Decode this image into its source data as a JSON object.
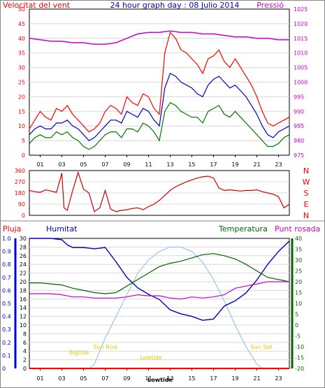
{
  "chart_data": [
    {
      "type": "line",
      "panel": "wind-pressure",
      "title": "24 hour graph day : 08 Julio 2014",
      "left_axis_title": "Velocitat del vent",
      "right_axis_title": "Pressió",
      "y_left_ticks": [
        "50",
        "45",
        "40",
        "35",
        "30",
        "25",
        "20",
        "15",
        "10",
        "5",
        "0"
      ],
      "y_right_ticks": [
        "1025",
        "1020",
        "1015",
        "1010",
        "1005",
        "1000",
        "995",
        "990",
        "985",
        "980",
        "975"
      ],
      "ylim_left": [
        0,
        50
      ],
      "ylim_right": [
        975,
        1025
      ],
      "x_ticks": [
        "01",
        "03",
        "05",
        "07",
        "09",
        "11",
        "13",
        "15",
        "17",
        "19",
        "21",
        "23"
      ],
      "xlim": [
        0,
        24
      ],
      "series": [
        {
          "axis": "left",
          "color": "#ff0000",
          "x": [
            0,
            0.5,
            1,
            1.5,
            2,
            2.5,
            3,
            3.5,
            4,
            4.5,
            5,
            5.5,
            6,
            6.5,
            7,
            7.5,
            8,
            8.5,
            9,
            9.5,
            10,
            10.5,
            11,
            11.5,
            12,
            12.5,
            13,
            13.5,
            14,
            14.5,
            15,
            15.5,
            16,
            16.5,
            17,
            17.5,
            18,
            18.5,
            19,
            19.5,
            20,
            20.5,
            21,
            21.5,
            22,
            22.5,
            23,
            23.5,
            24
          ],
          "y": [
            9,
            12,
            15,
            13,
            12,
            16,
            15,
            17,
            14,
            12,
            10,
            8,
            9,
            11,
            15,
            17,
            16,
            14,
            20,
            18,
            17,
            21,
            20,
            16,
            14,
            35,
            42,
            40,
            36,
            35,
            33,
            31,
            28,
            33,
            34,
            36,
            32,
            30,
            33,
            30,
            27,
            24,
            20,
            15,
            11,
            10,
            11,
            12,
            13
          ]
        },
        {
          "axis": "left",
          "color": "#0000cc",
          "x": [
            0,
            0.5,
            1,
            1.5,
            2,
            2.5,
            3,
            3.5,
            4,
            4.5,
            5,
            5.5,
            6,
            6.5,
            7,
            7.5,
            8,
            8.5,
            9,
            9.5,
            10,
            10.5,
            11,
            11.5,
            12,
            12.5,
            13,
            13.5,
            14,
            14.5,
            15,
            15.5,
            16,
            16.5,
            17,
            17.5,
            18,
            18.5,
            19,
            19.5,
            20,
            20.5,
            21,
            21.5,
            22,
            22.5,
            23,
            23.5,
            24
          ],
          "y": [
            7,
            9,
            10,
            9,
            9,
            11,
            11,
            12,
            10,
            9,
            7,
            5,
            6,
            8,
            10,
            12,
            12,
            11,
            15,
            14,
            13,
            16,
            15,
            12,
            10,
            23,
            28,
            27,
            25,
            24,
            23,
            21,
            20,
            24,
            26,
            27,
            25,
            23,
            24,
            22,
            20,
            17,
            14,
            10,
            7,
            6,
            8,
            9,
            10
          ]
        },
        {
          "axis": "left",
          "color": "#007700",
          "x": [
            0,
            0.5,
            1,
            1.5,
            2,
            2.5,
            3,
            3.5,
            4,
            4.5,
            5,
            5.5,
            6,
            6.5,
            7,
            7.5,
            8,
            8.5,
            9,
            9.5,
            10,
            10.5,
            11,
            11.5,
            12,
            12.5,
            13,
            13.5,
            14,
            14.5,
            15,
            15.5,
            16,
            16.5,
            17,
            17.5,
            18,
            18.5,
            19,
            19.5,
            20,
            20.5,
            21,
            21.5,
            22,
            22.5,
            23,
            23.5,
            24
          ],
          "y": [
            4,
            6,
            7,
            6,
            6,
            8,
            7,
            8,
            6,
            5,
            3,
            2,
            3,
            5,
            7,
            8,
            8,
            6,
            9,
            9,
            8,
            11,
            10,
            8,
            5,
            15,
            18,
            17,
            15,
            14,
            13,
            13,
            11,
            15,
            16,
            17,
            14,
            13,
            15,
            13,
            11,
            9,
            7,
            5,
            3,
            3,
            4,
            6,
            7
          ]
        },
        {
          "axis": "right",
          "color": "#cc00cc",
          "x": [
            0,
            1,
            2,
            3,
            4,
            5,
            6,
            7,
            8,
            9,
            10,
            11,
            12,
            13,
            14,
            15,
            16,
            17,
            18,
            19,
            20,
            21,
            22,
            23,
            24
          ],
          "y": [
            1015,
            1014.5,
            1014,
            1014,
            1013.5,
            1013.5,
            1013,
            1013,
            1013.5,
            1015,
            1016.5,
            1017,
            1017,
            1017.5,
            1017,
            1017,
            1016.5,
            1016.5,
            1016,
            1015.5,
            1015.5,
            1015,
            1015,
            1014.5,
            1014.5
          ]
        }
      ]
    },
    {
      "type": "scatter",
      "panel": "wind-direction",
      "y_left_ticks": [
        "360",
        "270",
        "180",
        "90",
        "0"
      ],
      "right_labels": [
        "N",
        "W",
        "S",
        "E",
        "N"
      ],
      "ylim": [
        0,
        360
      ],
      "xlim": [
        0,
        24
      ],
      "series": [
        {
          "color": "#cc0000",
          "x": [
            0,
            0.5,
            1,
            1.5,
            2,
            2.5,
            3,
            3.2,
            3.5,
            4,
            4.5,
            5,
            5.5,
            6,
            6.5,
            7,
            7.5,
            8,
            8.5,
            9,
            9.5,
            10,
            10.5,
            11,
            11.5,
            12,
            12.5,
            13,
            13.5,
            14,
            14.5,
            15,
            15.5,
            16,
            16.5,
            17,
            17.5,
            18,
            18.5,
            19,
            19.5,
            20,
            20.5,
            21,
            21.5,
            22,
            22.5,
            23,
            23.5,
            24
          ],
          "y": [
            200,
            190,
            185,
            205,
            195,
            185,
            340,
            60,
            40,
            200,
            345,
            210,
            180,
            30,
            60,
            200,
            50,
            30,
            40,
            45,
            55,
            60,
            45,
            70,
            90,
            120,
            160,
            200,
            230,
            250,
            270,
            285,
            300,
            310,
            315,
            300,
            220,
            200,
            205,
            200,
            195,
            200,
            200,
            205,
            190,
            180,
            170,
            150,
            60,
            90
          ]
        }
      ]
    },
    {
      "type": "line",
      "panel": "humidity-temperature",
      "legend": [
        "Pluja",
        "Humitat",
        "Temperatura",
        "Punt rosada"
      ],
      "y_rain_ticks": [
        "1.0",
        "0.9",
        "0.8",
        "0.7",
        "0.6",
        "0.5",
        "0.4",
        "0.3",
        "0.2",
        "0.1",
        "0"
      ],
      "y_hum_ticks": [
        "100",
        "90",
        "80",
        "70",
        "60",
        "50",
        "40",
        "30",
        "20",
        "10",
        "0"
      ],
      "y_temp_ticks": [
        "40",
        "35",
        "30",
        "25",
        "20",
        "15",
        "10",
        "5",
        "0",
        "-5",
        "-10",
        "-15",
        "-20"
      ],
      "y_mid_ticks": [
        "30",
        "28",
        "26",
        "24",
        "22",
        "20",
        "18",
        "16",
        "14",
        "12",
        "10",
        "8",
        "6",
        "4",
        "2",
        "0"
      ],
      "ylim_humidity": [
        0,
        100
      ],
      "ylim_temperature": [
        -20,
        40
      ],
      "x_ticks": [
        "01",
        "03",
        "05",
        "07",
        "09",
        "11",
        "13",
        "15",
        "17",
        "19",
        "21",
        "23"
      ],
      "xlim": [
        0,
        24
      ],
      "annotations": [
        "Bigtide",
        "Sun Rise",
        "Lowtide",
        "Lowtide",
        "Sun Set"
      ],
      "series": [
        {
          "name": "Humitat",
          "color": "#0000bb",
          "x": [
            0,
            1,
            2,
            3,
            3.5,
            4,
            5,
            6,
            7,
            8,
            9,
            10,
            11,
            12,
            13,
            14,
            15,
            16,
            17,
            18,
            19,
            20,
            21,
            22,
            23,
            24
          ],
          "y": [
            100,
            100,
            100,
            99,
            95,
            93,
            93,
            92,
            93,
            82,
            70,
            62,
            57,
            53,
            45,
            42,
            40,
            37,
            38,
            48,
            52,
            58,
            68,
            80,
            90,
            98
          ]
        },
        {
          "name": "Temperatura",
          "color": "#006600",
          "x": [
            0,
            1,
            2,
            3,
            4,
            5,
            6,
            7,
            8,
            9,
            10,
            11,
            12,
            13,
            14,
            15,
            16,
            17,
            18,
            19,
            20,
            21,
            22,
            23,
            24
          ],
          "y": [
            19.5,
            19.5,
            19,
            18.5,
            17,
            16,
            15,
            14.5,
            15,
            18,
            21,
            24,
            27,
            28.5,
            29.5,
            31,
            32.5,
            33,
            32,
            30.5,
            28,
            25,
            22,
            21,
            20
          ]
        },
        {
          "name": "Punt rosada",
          "color": "#cc00cc",
          "x": [
            0,
            1,
            2,
            3,
            4,
            5,
            6,
            7,
            8,
            9,
            10,
            11,
            12,
            13,
            14,
            15,
            16,
            17,
            18,
            19,
            20,
            21,
            22,
            23,
            24
          ],
          "y": [
            14.5,
            14.5,
            14.5,
            14,
            13,
            13,
            12.5,
            12.5,
            12.5,
            13,
            14,
            13.5,
            13.5,
            12.5,
            12,
            13,
            12.5,
            13,
            14,
            17,
            18,
            19,
            20,
            20,
            20
          ]
        },
        {
          "color": "#88bbee",
          "x": [
            5.5,
            6,
            7,
            8,
            9,
            10,
            11,
            12,
            13,
            14,
            15,
            16,
            17,
            18,
            19,
            20,
            21,
            21.5
          ],
          "y": [
            -20,
            -18,
            -6,
            4,
            14,
            24,
            30,
            34,
            36,
            36,
            34,
            29,
            21,
            11,
            0,
            -10,
            -18,
            -20
          ]
        },
        {
          "name": "Pluja",
          "color": "#ff0000",
          "x": [
            0,
            24
          ],
          "y": [
            0,
            0
          ]
        }
      ]
    }
  ]
}
